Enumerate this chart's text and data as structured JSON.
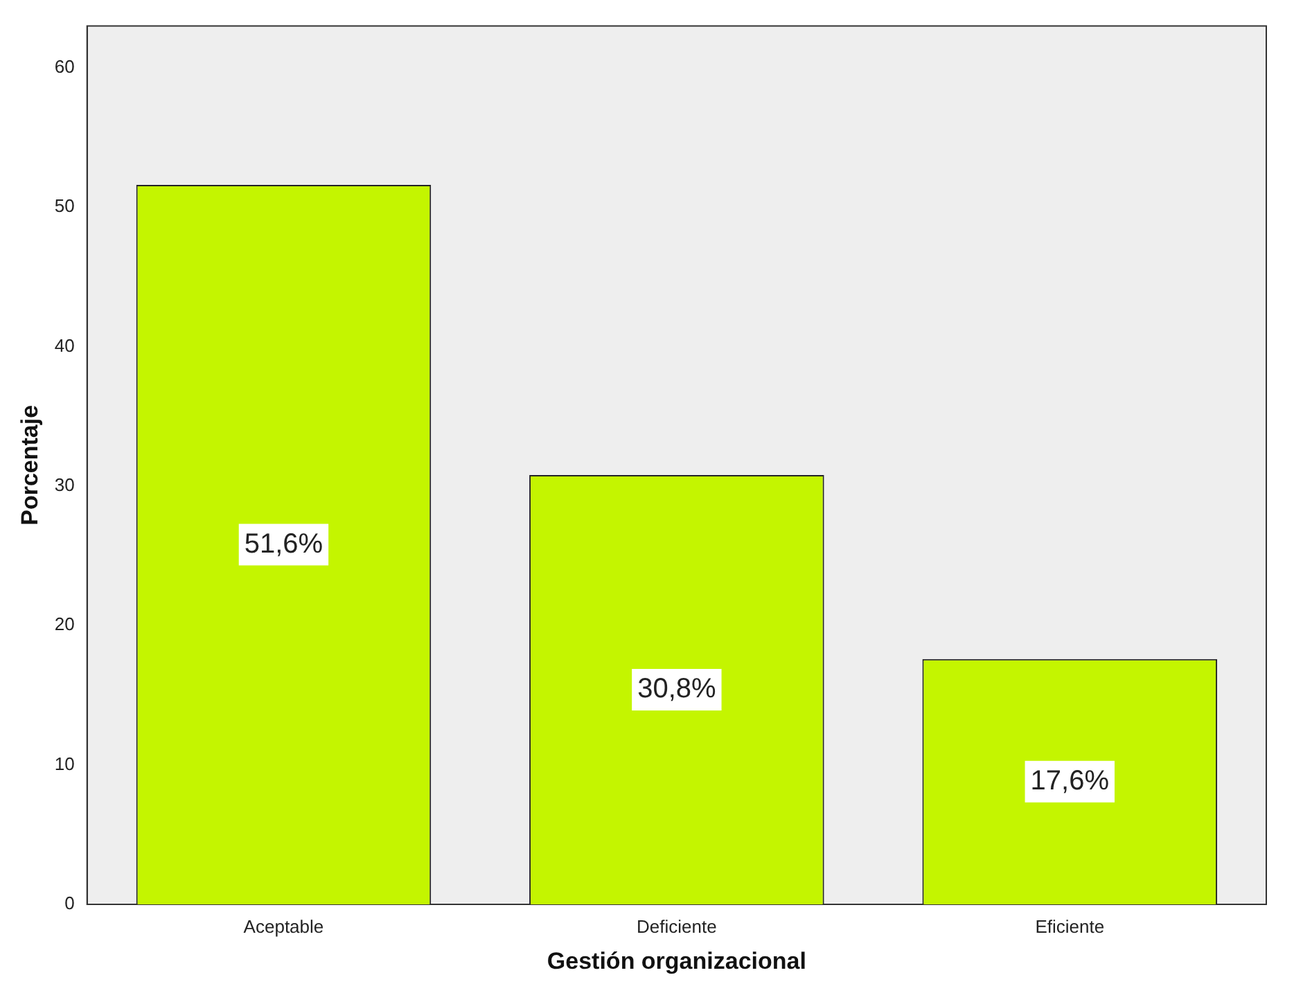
{
  "chart_data": {
    "type": "bar",
    "xlabel": "Gestión organizacional",
    "ylabel": "Porcentaje",
    "categories": [
      "Aceptable",
      "Deficiente",
      "Eficiente"
    ],
    "values": [
      51.6,
      30.8,
      17.6
    ],
    "value_labels": [
      "51,6%",
      "30,8%",
      "17,6%"
    ],
    "color": "#c4f500",
    "ylim": [
      0,
      63
    ],
    "yticks": [
      0,
      10,
      20,
      30,
      40,
      50,
      60
    ],
    "grid": false,
    "legend": false
  }
}
